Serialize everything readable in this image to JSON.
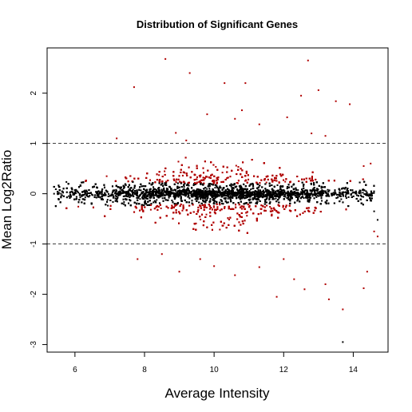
{
  "chart_data": {
    "type": "scatter",
    "title": "Distribution of Significant Genes",
    "xlabel": "Average Intensity",
    "ylabel": "Mean Log2Ratio",
    "xlim": [
      5.2,
      15.0
    ],
    "ylim": [
      -3.15,
      2.9
    ],
    "x_ticks": [
      6,
      8,
      10,
      12,
      14
    ],
    "y_ticks": [
      -3,
      -2,
      -1,
      0,
      1,
      2
    ],
    "reference_lines": [
      1,
      -1
    ],
    "grid": false,
    "legend": "none",
    "colors": {
      "significant": "#b00000",
      "non_significant": "#000000"
    },
    "series": [
      {
        "key": "significant",
        "points": [
          [
            8.6,
            2.68
          ],
          [
            12.7,
            2.65
          ],
          [
            9.3,
            2.4
          ],
          [
            10.3,
            2.2
          ],
          [
            10.9,
            2.2
          ],
          [
            7.7,
            2.12
          ],
          [
            12.5,
            1.95
          ],
          [
            13.0,
            2.06
          ],
          [
            13.5,
            1.84
          ],
          [
            13.9,
            1.78
          ],
          [
            9.8,
            1.58
          ],
          [
            10.8,
            1.66
          ],
          [
            12.1,
            1.52
          ],
          [
            10.6,
            1.49
          ],
          [
            8.9,
            1.21
          ],
          [
            9.2,
            1.06
          ],
          [
            7.2,
            1.1
          ],
          [
            13.2,
            1.15
          ],
          [
            12.8,
            1.2
          ],
          [
            11.3,
            1.38
          ],
          [
            9.0,
            -1.55
          ],
          [
            10.6,
            -1.62
          ],
          [
            11.3,
            -1.46
          ],
          [
            12.3,
            -1.7
          ],
          [
            12.6,
            -1.9
          ],
          [
            13.3,
            -2.1
          ],
          [
            13.7,
            -2.3
          ],
          [
            11.8,
            -2.05
          ],
          [
            14.4,
            -1.55
          ],
          [
            13.2,
            -1.8
          ],
          [
            10.0,
            -1.44
          ],
          [
            8.5,
            -1.2
          ],
          [
            9.6,
            -1.3
          ],
          [
            12.0,
            -1.3
          ],
          [
            14.3,
            -1.88
          ],
          [
            7.8,
            -1.3
          ],
          [
            14.7,
            -0.85
          ],
          [
            14.6,
            -0.75
          ],
          [
            14.5,
            0.6
          ],
          [
            14.3,
            0.55
          ]
        ]
      },
      {
        "key": "non_significant",
        "points": [
          [
            13.7,
            -2.95
          ],
          [
            14.6,
            -0.35
          ],
          [
            14.7,
            -0.52
          ],
          [
            5.4,
            0.0
          ],
          [
            5.6,
            -0.05
          ],
          [
            5.9,
            0.04
          ]
        ]
      }
    ]
  }
}
